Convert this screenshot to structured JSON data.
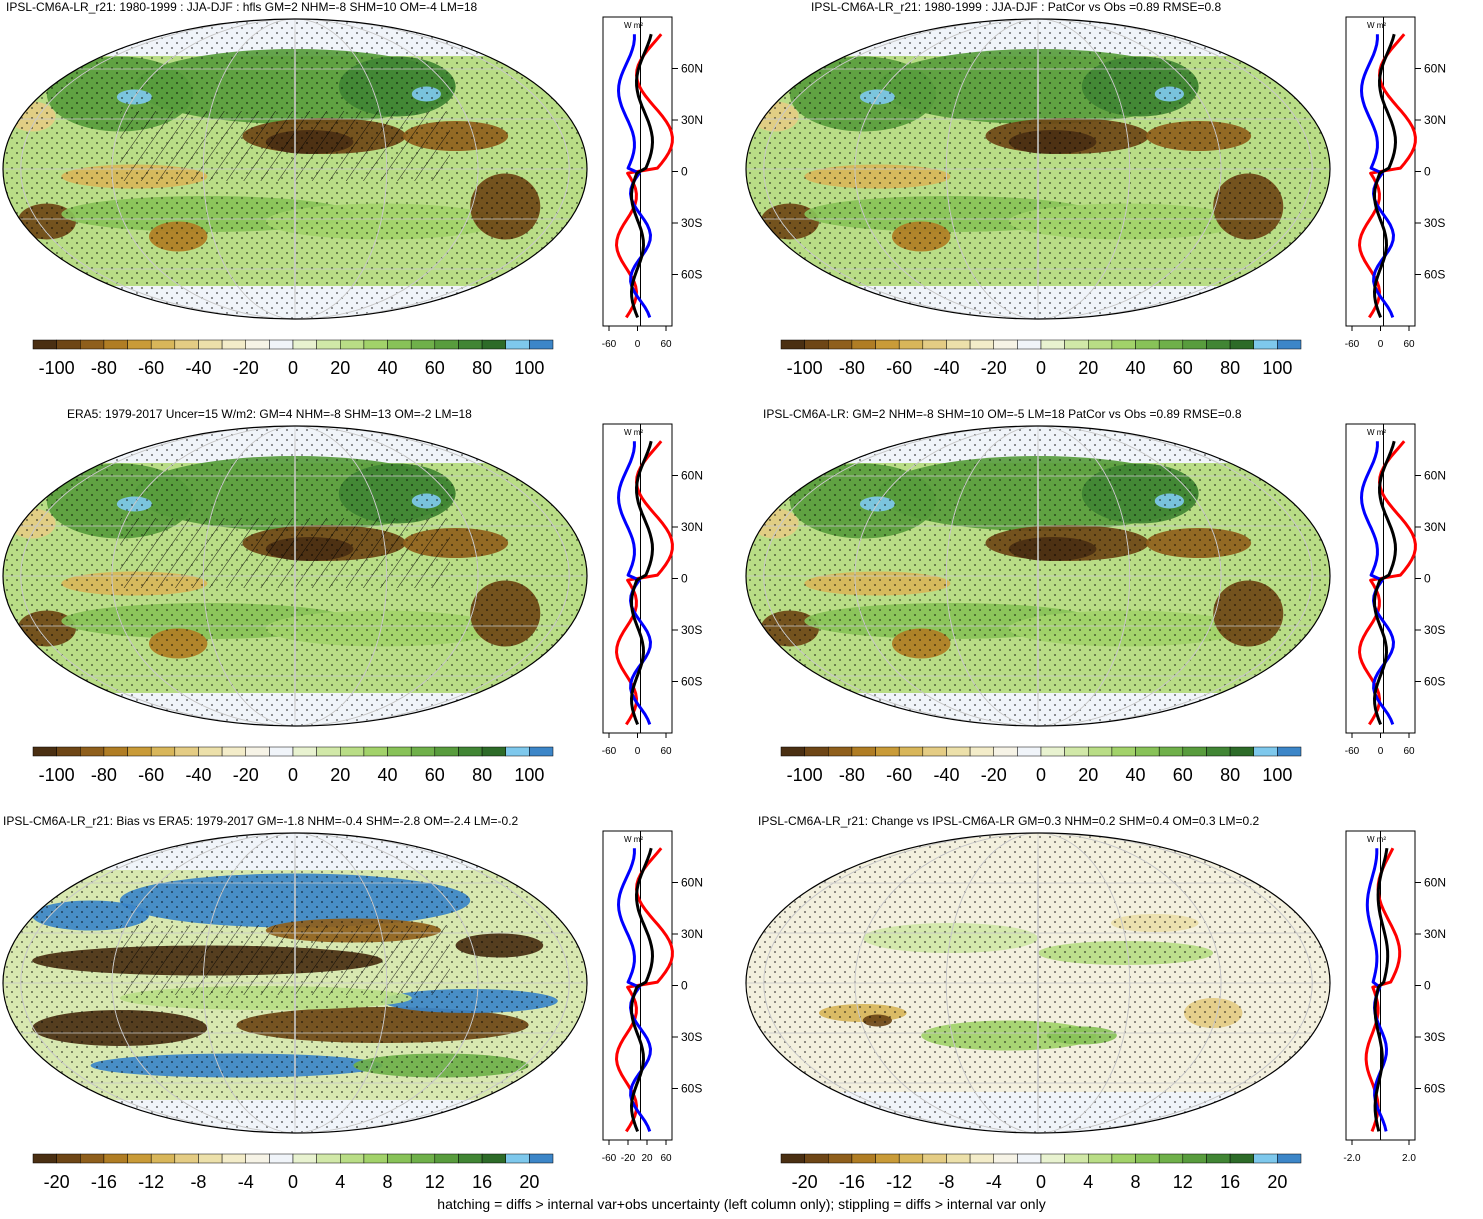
{
  "palette": [
    "#4a2f12",
    "#6e4616",
    "#8f5f1c",
    "#b07d24",
    "#c99b38",
    "#d8b65a",
    "#e4cc84",
    "#ece0aa",
    "#f3ecc9",
    "#f6f3e6",
    "#f0f4f9",
    "#e8f2d0",
    "#d1e8a8",
    "#b9dd86",
    "#a2d26a",
    "#88c258",
    "#6fb04a",
    "#589c3d",
    "#418534",
    "#2d6b28",
    "#7ec8ec",
    "#3c86c8"
  ],
  "colorbar_ticks_main": [
    "-100",
    "-80",
    "-60",
    "-40",
    "-20",
    "0",
    "20",
    "40",
    "60",
    "80",
    "100"
  ],
  "colorbar_ticks_diff": [
    "-20",
    "-16",
    "-12",
    "-8",
    "-4",
    "0",
    "4",
    "8",
    "12",
    "16",
    "20"
  ],
  "profile_units": "W m²",
  "lat_ticks": [
    "60N",
    "30N",
    "0",
    "30S",
    "60S"
  ],
  "panels": [
    {
      "id": "p1",
      "title": "IPSL-CM6A-LR_r21: 1980-1999 : JJA-DJF : hfls GM=2 NHM=-8 SHM=10 OM=-4 LM=18",
      "profile_x_ticks": [
        "-60",
        "0",
        "60"
      ],
      "colorbar": "main"
    },
    {
      "id": "p2",
      "title": "IPSL-CM6A-LR_r21: 1980-1999 : JJA-DJF : PatCor vs Obs =0.89 RMSE=0.8",
      "profile_x_ticks": [
        "-60",
        "0",
        "60"
      ],
      "colorbar": "main"
    },
    {
      "id": "p3",
      "title": "ERA5: 1979-2017 Uncer=15 W/m2: GM=4 NHM=-8 SHM=13 OM=-2 LM=18",
      "profile_x_ticks": [
        "-60",
        "0",
        "60"
      ],
      "colorbar": "main"
    },
    {
      "id": "p4",
      "title": "IPSL-CM6A-LR: GM=2 NHM=-8 SHM=10 OM=-5 LM=18 PatCor vs Obs =0.89 RMSE=0.8",
      "profile_x_ticks": [
        "-60",
        "0",
        "60"
      ],
      "colorbar": "main"
    },
    {
      "id": "p5",
      "title": "IPSL-CM6A-LR_r21: Bias vs ERA5: 1979-2017 GM=-1.8 NHM=-0.4 SHM=-2.8 OM=-2.4 LM=-0.2",
      "profile_x_ticks": [
        "-60",
        "-20",
        "20",
        "60"
      ],
      "colorbar": "diff"
    },
    {
      "id": "p6",
      "title": "IPSL-CM6A-LR_r21: Change vs IPSL-CM6A-LR GM=0.3 NHM=0.2 SHM=0.4 OM=0.3 LM=0.2",
      "profile_x_ticks": [
        "-2.0",
        "2.0"
      ],
      "colorbar": "diff"
    }
  ],
  "chart_data": [
    {
      "type": "heatmap",
      "panel": "p1",
      "title": "IPSL-CM6A-LR_r21: 1980-1999 : JJA-DJF : hfls GM=2 NHM=-8 SHM=10 OM=-4 LM=18",
      "levels": [
        -100,
        100
      ]
    },
    {
      "type": "heatmap",
      "panel": "p2",
      "title": "IPSL-CM6A-LR_r21: 1980-1999 : JJA-DJF : PatCor vs Obs =0.89 RMSE=0.8",
      "levels": [
        -100,
        100
      ]
    },
    {
      "type": "heatmap",
      "panel": "p3",
      "title": "ERA5: 1979-2017 Uncer=15 W/m2: GM=4 NHM=-8 SHM=13 OM=-2 LM=18",
      "levels": [
        -100,
        100
      ]
    },
    {
      "type": "heatmap",
      "panel": "p4",
      "title": "IPSL-CM6A-LR: GM=2 NHM=-8 SHM=10 OM=-5 LM=18 PatCor vs Obs =0.89 RMSE=0.8",
      "levels": [
        -100,
        100
      ]
    },
    {
      "type": "heatmap",
      "panel": "p5",
      "title": "IPSL-CM6A-LR_r21: Bias vs ERA5: 1979-2017 GM=-1.8 NHM=-0.4 SHM=-2.8 OM=-2.4 LM=-0.2",
      "levels": [
        -20,
        20
      ]
    },
    {
      "type": "heatmap",
      "panel": "p6",
      "title": "IPSL-CM6A-LR_r21: Change vs IPSL-CM6A-LR GM=0.3 NHM=0.2 SHM=0.4 OM=0.3 LM=0.2",
      "levels": [
        -20,
        20
      ]
    }
  ],
  "footer": "hatching = diffs > internal var+obs uncertainty (left column only); stippling = diffs > internal var only"
}
